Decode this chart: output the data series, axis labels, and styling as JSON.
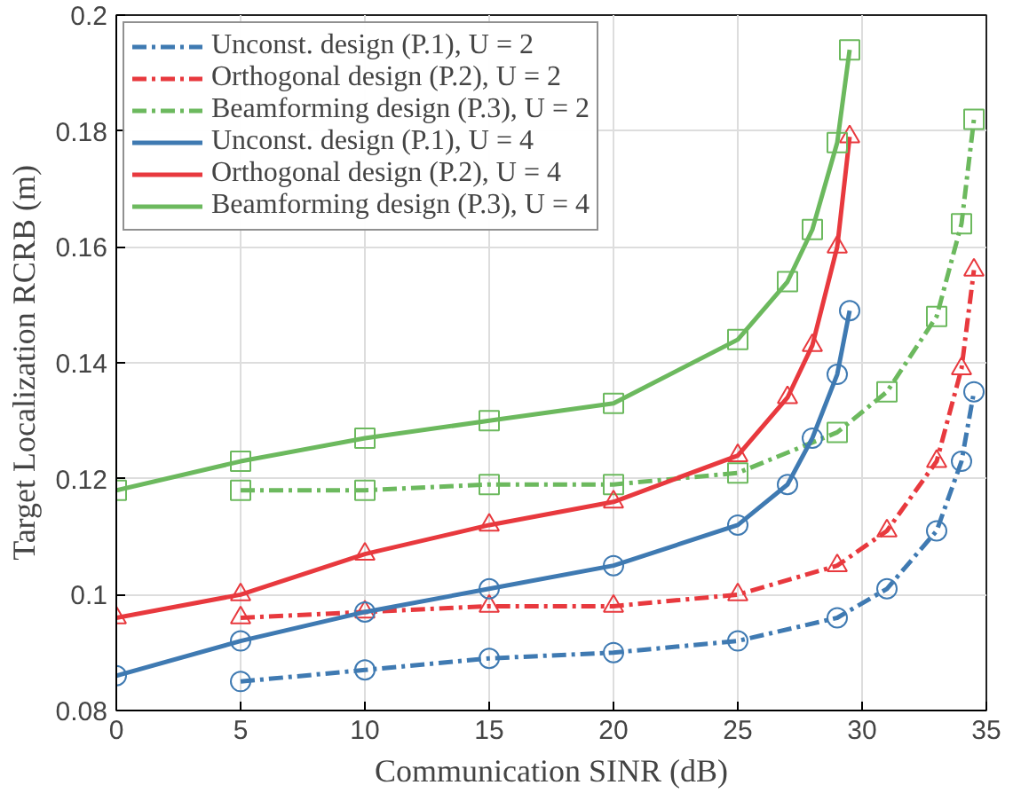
{
  "chart_data": {
    "type": "line",
    "xlabel": "Communication SINR (dB)",
    "ylabel": "Target Localization RCRB (m)",
    "xlim": [
      0,
      35
    ],
    "xticks": [
      0,
      5,
      10,
      15,
      20,
      25,
      30,
      35
    ],
    "ylim": [
      0.08,
      0.2
    ],
    "yticks": [
      0.08,
      0.1,
      0.12,
      0.14,
      0.16,
      0.18,
      0.2
    ],
    "grid": true,
    "legend": "top left",
    "series": [
      {
        "name": "Unconst. design (P.1), U = 2",
        "color": "#3f7ab2",
        "line_style": "dashed",
        "marker": "circle",
        "x": [
          5,
          10,
          15,
          20,
          25,
          29,
          31,
          33,
          34,
          34.5
        ],
        "values": [
          0.085,
          0.087,
          0.089,
          0.09,
          0.092,
          0.096,
          0.101,
          0.111,
          0.123,
          0.135
        ]
      },
      {
        "name": "Orthogonal design (P.2), U = 2",
        "color": "#e8393e",
        "line_style": "dashed",
        "marker": "triangle",
        "x": [
          5,
          10,
          15,
          20,
          25,
          29,
          31,
          33,
          34,
          34.5
        ],
        "values": [
          0.096,
          0.097,
          0.098,
          0.098,
          0.1,
          0.105,
          0.111,
          0.123,
          0.139,
          0.156
        ]
      },
      {
        "name": "Beamforming design (P.3), U = 2",
        "color": "#6cb95e",
        "line_style": "dashed",
        "marker": "square",
        "x": [
          5,
          10,
          15,
          20,
          25,
          29,
          31,
          33,
          34,
          34.5
        ],
        "values": [
          0.118,
          0.118,
          0.119,
          0.119,
          0.121,
          0.128,
          0.135,
          0.148,
          0.164,
          0.182
        ]
      },
      {
        "name": "Unconst. design (P.1), U = 4",
        "color": "#3f7ab2",
        "line_style": "solid",
        "marker": "circle",
        "x": [
          0,
          5,
          10,
          15,
          20,
          25,
          27,
          28,
          29,
          29.5
        ],
        "values": [
          0.086,
          0.092,
          0.097,
          0.101,
          0.105,
          0.112,
          0.119,
          0.127,
          0.138,
          0.149
        ]
      },
      {
        "name": "Orthogonal design (P.2), U = 4",
        "color": "#e8393e",
        "line_style": "solid",
        "marker": "triangle",
        "x": [
          0,
          5,
          10,
          15,
          20,
          25,
          27,
          28,
          29,
          29.5
        ],
        "values": [
          0.096,
          0.1,
          0.107,
          0.112,
          0.116,
          0.124,
          0.134,
          0.143,
          0.16,
          0.179
        ]
      },
      {
        "name": "Beamforming design (P.3), U = 4",
        "color": "#6cb95e",
        "line_style": "solid",
        "marker": "square",
        "x": [
          0,
          5,
          10,
          15,
          20,
          25,
          27,
          28,
          29,
          29.5
        ],
        "values": [
          0.118,
          0.123,
          0.127,
          0.13,
          0.133,
          0.144,
          0.154,
          0.163,
          0.178,
          0.194
        ]
      }
    ]
  }
}
